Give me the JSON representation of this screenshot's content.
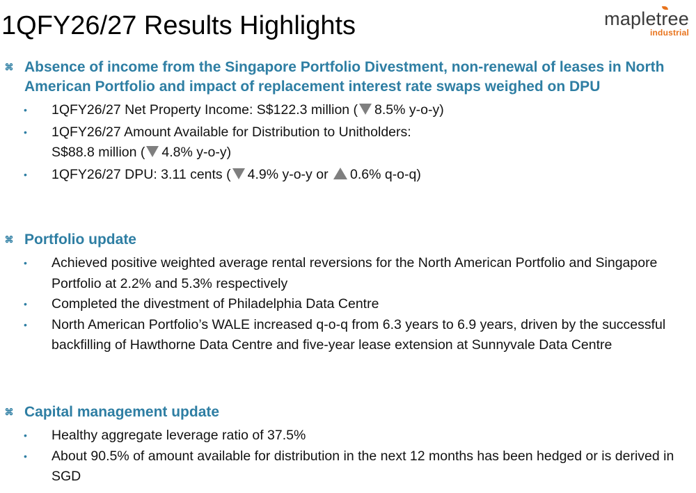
{
  "header": {
    "title": "1QFY26/27 Results Highlights"
  },
  "logo": {
    "word": "mapletree",
    "sub": "industrial"
  },
  "icons": {
    "section_marker": "diamond-star-bullet-icon",
    "bullet": "dot-bullet-icon",
    "down": "triangle-down-icon",
    "up": "triangle-up-icon"
  },
  "colors": {
    "heading": "#2e7ea3",
    "logo_accent": "#e8731c",
    "triangle": "#7f7f7f"
  },
  "sections": [
    {
      "heading": "Absence of income from the Singapore Portfolio Divestment, non-renewal of leases in North American Portfolio and impact of replacement interest rate swaps weighed on DPU",
      "bullets": [
        {
          "text_before": "1QFY26/27 Net Property Income: S$122.3 million (",
          "change_1": "8.5% y-o-y)"
        },
        {
          "line_1": "1QFY26/27 Amount Available for Distribution to Unitholders:",
          "text_before": "S$88.8 million (",
          "change_1": "4.8% y-o-y)"
        },
        {
          "text_before": "1QFY26/27 DPU: 3.11 cents (",
          "change_1": "4.9% y-o-y or",
          "change_2": "0.6% q-o-q)"
        }
      ]
    },
    {
      "heading": "Portfolio update",
      "bullets": [
        "Achieved positive weighted average rental reversions for the North American Portfolio and Singapore Portfolio at 2.2% and 5.3% respectively",
        "Completed the divestment of Philadelphia Data Centre",
        "North American Portfolio’s WALE increased q-o-q from 6.3 years to 6.9 years, driven by the successful backfilling of Hawthorne Data Centre and five-year lease extension at Sunnyvale Data Centre"
      ]
    },
    {
      "heading": "Capital management update",
      "bullets": [
        "Healthy aggregate leverage ratio of 37.5%",
        "About 90.5% of amount available for distribution in the next 12 months has been hedged or is derived in SGD"
      ]
    }
  ]
}
